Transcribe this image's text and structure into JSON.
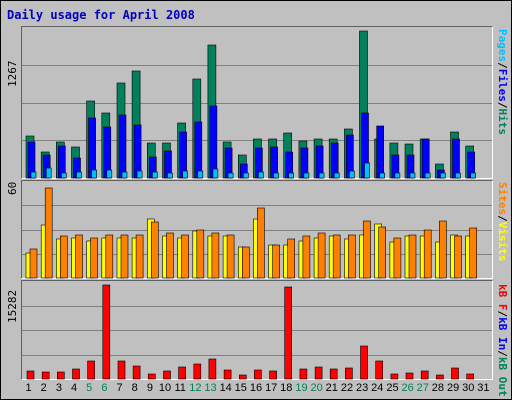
{
  "title": "Daily usage for April 2008",
  "days": [
    "1",
    "2",
    "3",
    "4",
    "5",
    "6",
    "7",
    "8",
    "9",
    "10",
    "11",
    "12",
    "13",
    "14",
    "15",
    "16",
    "17",
    "18",
    "19",
    "20",
    "21",
    "22",
    "23",
    "24",
    "25",
    "26",
    "27",
    "28",
    "29",
    "30",
    "31"
  ],
  "weekend_days": [
    5,
    6,
    12,
    13,
    19,
    20,
    26,
    27
  ],
  "colors": {
    "hits": "#00805c",
    "files": "#0000ff",
    "pages": "#00c0ff",
    "visits": "#ffff00",
    "sites": "#ff8000",
    "kb_in": "#0000ff",
    "kb_out": "#00805c",
    "kb_f": "#ff0000",
    "weekday_label": "#000000",
    "weekend_label": "#00805c",
    "title": "#0000c0"
  },
  "chart_data": [
    {
      "type": "bar",
      "ylabel_max": "1267",
      "ylim": [
        0,
        1267
      ],
      "legend": [
        {
          "text": "Pages",
          "color": "#00c0ff"
        },
        {
          "text": "Files",
          "color": "#0000ff"
        },
        {
          "text": "Hits",
          "color": "#00805c"
        }
      ],
      "series": [
        {
          "name": "Hits",
          "values": [
            365,
            220,
            310,
            270,
            660,
            560,
            820,
            920,
            300,
            300,
            470,
            850,
            1150,
            310,
            200,
            340,
            340,
            390,
            320,
            340,
            340,
            420,
            1270,
            340,
            300,
            290,
            340,
            120,
            400,
            280,
            0
          ]
        },
        {
          "name": "Files",
          "values": [
            310,
            200,
            280,
            170,
            520,
            440,
            540,
            460,
            180,
            230,
            400,
            480,
            620,
            260,
            120,
            260,
            270,
            220,
            260,
            280,
            300,
            370,
            560,
            450,
            200,
            200,
            340,
            70,
            340,
            220,
            0
          ]
        },
        {
          "name": "Pages",
          "values": [
            50,
            90,
            40,
            50,
            70,
            70,
            50,
            60,
            50,
            40,
            60,
            60,
            80,
            40,
            40,
            50,
            40,
            40,
            40,
            40,
            40,
            60,
            130,
            40,
            40,
            40,
            40,
            40,
            40,
            40,
            0
          ]
        }
      ]
    },
    {
      "type": "bar",
      "ylabel_max": "60",
      "ylim": [
        0,
        60
      ],
      "legend": [
        {
          "text": "Sites",
          "color": "#ff8000"
        },
        {
          "text": "Visits",
          "color": "#ffff00"
        }
      ],
      "series": [
        {
          "name": "Visits",
          "values": [
            16,
            34,
            25,
            26,
            24,
            26,
            26,
            26,
            38,
            27,
            26,
            30,
            27,
            27,
            20,
            38,
            21,
            21,
            24,
            26,
            27,
            25,
            28,
            35,
            23,
            27,
            27,
            23,
            28,
            27,
            0
          ]
        },
        {
          "name": "Sites",
          "values": [
            19,
            58,
            27,
            28,
            26,
            28,
            28,
            28,
            36,
            29,
            28,
            31,
            29,
            28,
            20,
            45,
            21,
            25,
            27,
            29,
            28,
            28,
            37,
            33,
            26,
            28,
            31,
            37,
            27,
            32,
            0
          ]
        }
      ]
    },
    {
      "type": "bar",
      "ylabel_max": "15282",
      "ylim": [
        0,
        15282
      ],
      "legend": [
        {
          "text": "kB F",
          "color": "#ff0000"
        },
        {
          "text": "kB In",
          "color": "#0000ff"
        },
        {
          "text": "kB Out",
          "color": "#00805c"
        }
      ],
      "series": [
        {
          "name": "kB F",
          "values": [
            1300,
            1200,
            1100,
            1600,
            2900,
            15282,
            3000,
            2100,
            800,
            1300,
            2000,
            2500,
            3200,
            1400,
            600,
            1500,
            1300,
            15000,
            1700,
            1900,
            1700,
            1800,
            5400,
            3000,
            800,
            1000,
            1300,
            600,
            1800,
            800,
            0
          ]
        }
      ]
    }
  ]
}
